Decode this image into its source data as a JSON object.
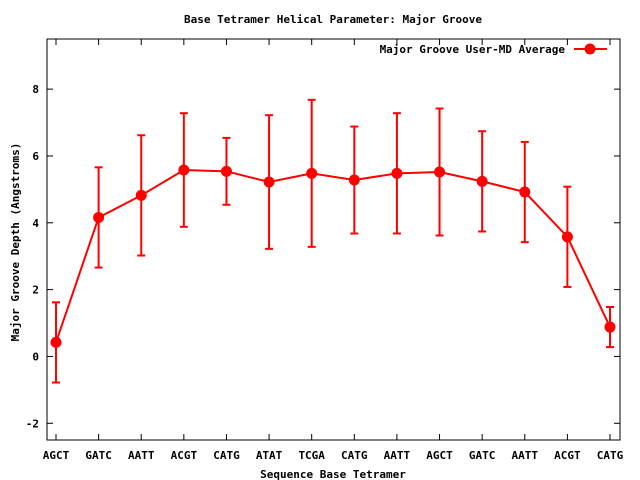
{
  "chart_data": {
    "type": "line",
    "title": "Base Tetramer Helical Parameter: Major Groove",
    "xlabel": "Sequence Base Tetramer",
    "ylabel": "Major Groove Depth (Angstroms)",
    "categories": [
      "AGCT",
      "GATC",
      "AATT",
      "ACGT",
      "CATG",
      "ATAT",
      "TCGA",
      "CATG",
      "AATT",
      "AGCT",
      "GATC",
      "AATT",
      "ACGT",
      "CATG"
    ],
    "ylim": [
      -2.5,
      9.5
    ],
    "yticks": [
      -2,
      0,
      2,
      4,
      6,
      8
    ],
    "grid": false,
    "legend_position": "top-right",
    "series": [
      {
        "name": "Major Groove User-MD Average",
        "color": "#ff0000",
        "values": [
          0.42,
          4.16,
          4.82,
          5.58,
          5.54,
          5.22,
          5.48,
          5.28,
          5.48,
          5.52,
          5.24,
          4.92,
          3.58,
          0.88
        ],
        "errors": [
          1.2,
          1.5,
          1.8,
          1.7,
          1.0,
          2.0,
          2.2,
          1.6,
          1.8,
          1.9,
          1.5,
          1.5,
          1.5,
          0.6
        ]
      }
    ]
  }
}
